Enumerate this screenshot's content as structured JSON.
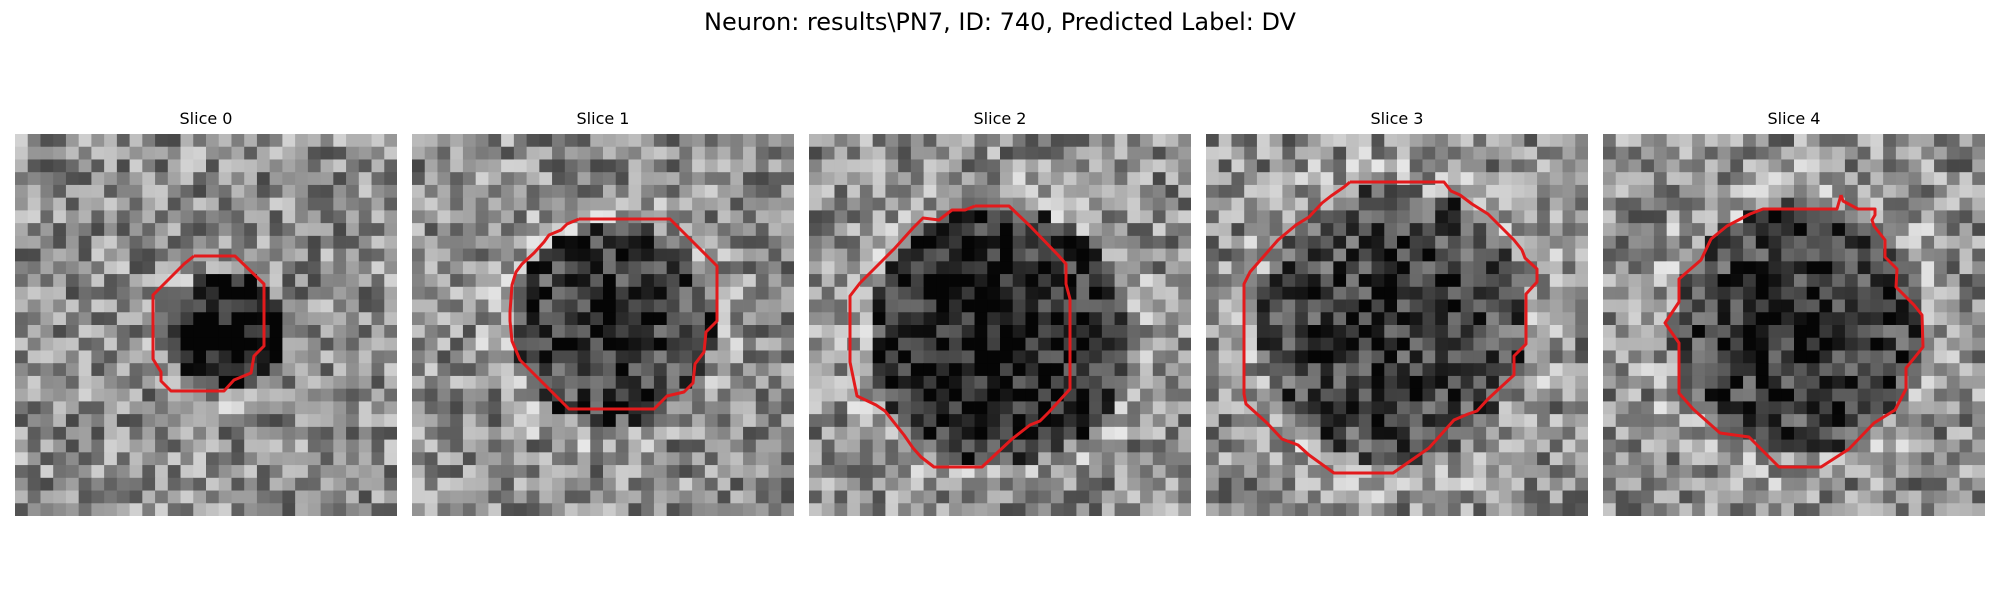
{
  "figure": {
    "title": "Neuron: results\\PN7, ID: 740, Predicted Label: DV"
  },
  "panels": [
    {
      "title": "Slice 0",
      "seed": 11,
      "blob_darkness": 0.55
    },
    {
      "title": "Slice 1",
      "seed": 23,
      "blob_darkness": 0.4
    },
    {
      "title": "Slice 2",
      "seed": 37,
      "blob_darkness": 0.5
    },
    {
      "title": "Slice 3",
      "seed": 41,
      "blob_darkness": 0.35
    },
    {
      "title": "Slice 4",
      "seed": 59,
      "blob_darkness": 0.4
    }
  ],
  "contour_color": "#e31a1c",
  "colormap": "gray"
}
